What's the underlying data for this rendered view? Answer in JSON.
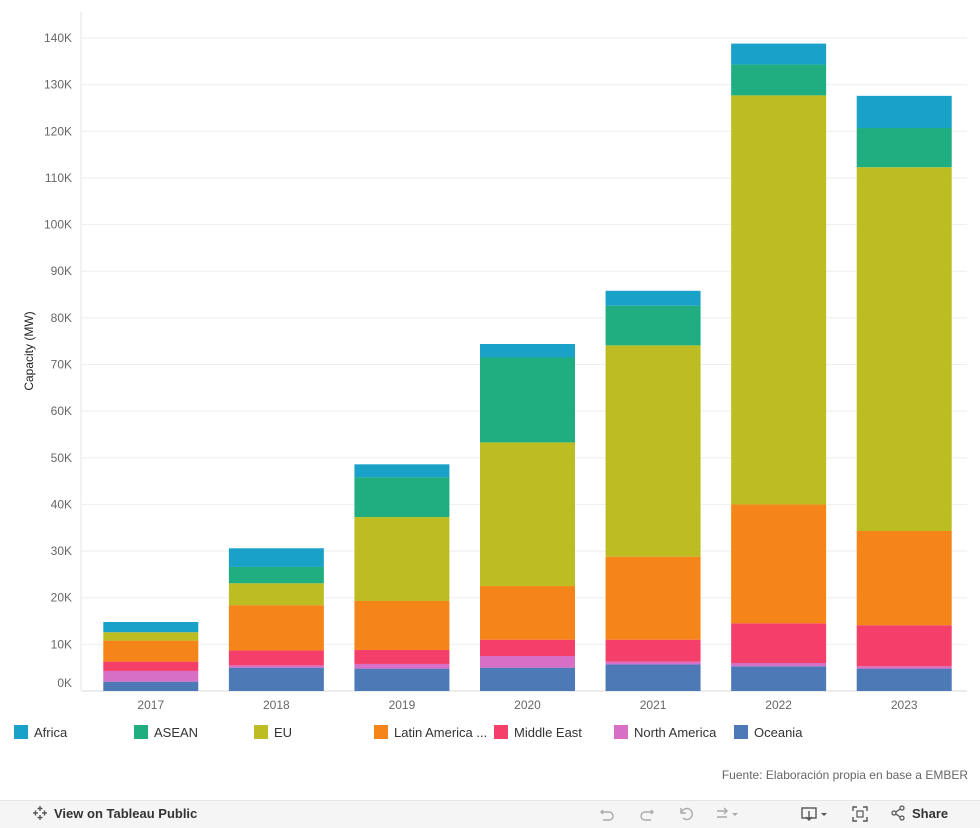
{
  "chart_data": {
    "type": "bar",
    "stacked": true,
    "ylabel": "Capacity (MW)",
    "xlabel": "",
    "ylim": [
      0,
      140000
    ],
    "yticks": [
      0,
      10000,
      20000,
      30000,
      40000,
      50000,
      60000,
      70000,
      80000,
      90000,
      100000,
      110000,
      120000,
      130000,
      140000
    ],
    "ytick_labels": [
      "0K",
      "10K",
      "20K",
      "30K",
      "40K",
      "50K",
      "60K",
      "70K",
      "80K",
      "90K",
      "100K",
      "110K",
      "120K",
      "130K",
      "140K"
    ],
    "categories": [
      "2017",
      "2018",
      "2019",
      "2020",
      "2021",
      "2022",
      "2023"
    ],
    "series": [
      {
        "name": "Oceania",
        "color": "#4e79b7",
        "values": [
          2000,
          5000,
          4800,
          5000,
          5700,
          5300,
          4800
        ]
      },
      {
        "name": "North America",
        "color": "#d66fc5",
        "values": [
          2300,
          500,
          1000,
          2500,
          600,
          700,
          500
        ]
      },
      {
        "name": "Middle East",
        "color": "#f43f6a",
        "values": [
          2000,
          3200,
          3000,
          3500,
          4700,
          8500,
          8800
        ]
      },
      {
        "name": "Latin America ...",
        "color": "#f58518",
        "values": [
          4500,
          9700,
          10500,
          11500,
          17800,
          25500,
          20200
        ]
      },
      {
        "name": "EU",
        "color": "#bcbd22",
        "values": [
          1800,
          4700,
          18000,
          30800,
          45300,
          87700,
          78000
        ]
      },
      {
        "name": "ASEAN",
        "color": "#20ad80",
        "values": [
          0,
          3500,
          8500,
          18200,
          8500,
          6600,
          8400
        ]
      },
      {
        "name": "Africa",
        "color": "#1aa1c8",
        "values": [
          2200,
          4000,
          2800,
          2900,
          3200,
          4500,
          6900
        ]
      }
    ]
  },
  "legend_order": [
    "Africa",
    "ASEAN",
    "EU",
    "Latin America ...",
    "Middle East",
    "North America",
    "Oceania"
  ],
  "source_text": "Fuente: Elaboración propia en base a EMBER",
  "toolbar": {
    "view_label": "View on Tableau Public",
    "share_label": "Share"
  }
}
